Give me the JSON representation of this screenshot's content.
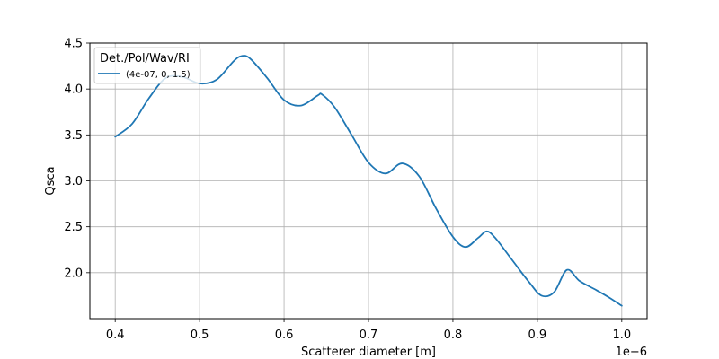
{
  "chart_data": {
    "type": "line",
    "xlabel": "Scatterer diameter [m]",
    "ylabel": "Qsca",
    "x_offset_label": "1e−6",
    "xlim": [
      0.37,
      1.03
    ],
    "ylim": [
      1.5,
      4.5
    ],
    "x_ticks": [
      0.4,
      0.5,
      0.6,
      0.7,
      0.8,
      0.9,
      1.0
    ],
    "x_tick_labels": [
      "0.4",
      "0.5",
      "0.6",
      "0.7",
      "0.8",
      "0.9",
      "1.0"
    ],
    "y_ticks": [
      2.0,
      2.5,
      3.0,
      3.5,
      4.0,
      4.5
    ],
    "y_tick_labels": [
      "2.0",
      "2.5",
      "3.0",
      "3.5",
      "4.0",
      "4.5"
    ],
    "grid": true,
    "legend": {
      "title": "Det./Pol/Wav/RI",
      "placement": "top-left"
    },
    "series": [
      {
        "name": "(4e-07, 0, 1.5)",
        "color": "#1f77b4",
        "x": [
          0.4,
          0.42,
          0.44,
          0.46,
          0.48,
          0.5,
          0.52,
          0.54,
          0.55,
          0.56,
          0.58,
          0.6,
          0.62,
          0.64,
          0.645,
          0.66,
          0.68,
          0.7,
          0.72,
          0.74,
          0.76,
          0.78,
          0.8,
          0.815,
          0.83,
          0.84,
          0.85,
          0.87,
          0.89,
          0.905,
          0.92,
          0.935,
          0.95,
          0.97,
          0.985,
          1.0
        ],
        "y": [
          3.48,
          3.62,
          3.9,
          4.12,
          4.13,
          4.06,
          4.1,
          4.3,
          4.36,
          4.33,
          4.12,
          3.88,
          3.82,
          3.93,
          3.94,
          3.8,
          3.5,
          3.2,
          3.08,
          3.19,
          3.05,
          2.7,
          2.39,
          2.28,
          2.38,
          2.45,
          2.38,
          2.14,
          1.9,
          1.75,
          1.79,
          2.03,
          1.91,
          1.81,
          1.73,
          1.64
        ]
      }
    ]
  }
}
